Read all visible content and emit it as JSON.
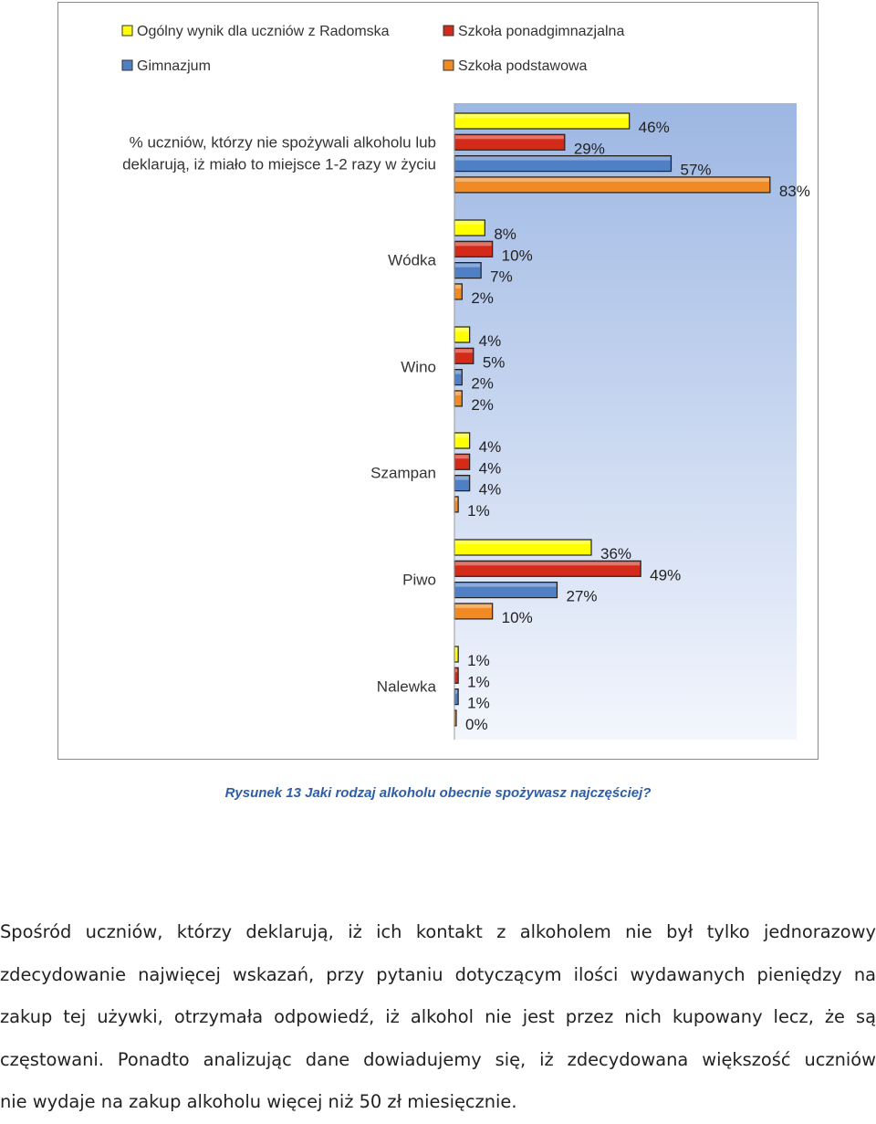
{
  "chart_data": {
    "type": "bar",
    "orientation": "horizontal",
    "categories": [
      "% uczniów, którzy nie spożywali alkoholu lub deklarują, iż miało to miejsce 1-2 razy w życiu",
      "Wódka",
      "Wino",
      "Szampan",
      "Piwo",
      "Nalewka"
    ],
    "category_lines": [
      [
        "% uczniów, którzy nie spożywali alkoholu lub",
        "deklarują, iż miało to miejsce 1-2 razy w życiu"
      ],
      [
        "Wódka"
      ],
      [
        "Wino"
      ],
      [
        "Szampan"
      ],
      [
        "Piwo"
      ],
      [
        "Nalewka"
      ]
    ],
    "series": [
      {
        "name": "Ogólny wynik dla uczniów z Radomska",
        "color": "#ffff00",
        "values": [
          46,
          8,
          4,
          4,
          36,
          1
        ],
        "labels": [
          "46%",
          "8%",
          "4%",
          "4%",
          "36%",
          "1%"
        ]
      },
      {
        "name": "Szkoła ponadgimnazjalna",
        "color": "#d42a1a",
        "values": [
          29,
          10,
          5,
          4,
          49,
          1
        ],
        "labels": [
          "29%",
          "10%",
          "5%",
          "4%",
          "49%",
          "1%"
        ]
      },
      {
        "name": "Gimnazjum",
        "color": "#4f7fc4",
        "values": [
          57,
          7,
          2,
          4,
          27,
          1
        ],
        "labels": [
          "57%",
          "7%",
          "2%",
          "4%",
          "27%",
          "1%"
        ]
      },
      {
        "name": "Szkoła podstawowa",
        "color": "#f08a24",
        "values": [
          83,
          2,
          2,
          1,
          10,
          0
        ],
        "labels": [
          "83%",
          "2%",
          "2%",
          "1%",
          "10%",
          "0%"
        ]
      }
    ],
    "xlim": [
      0,
      90
    ],
    "legend_position": "top",
    "plot_background": "gradient blue to white",
    "grid": false
  },
  "caption": "Rysunek 13 Jaki rodzaj alkoholu obecnie spożywasz najczęściej?",
  "paragraph": {
    "lines": [
      "Spośród uczniów, którzy deklarują, iż ich kontakt z alkoholem nie był tylko jednorazowy",
      "zdecydowanie najwięcej wskazań, przy pytaniu dotyczącym ilości wydawanych pieniędzy na",
      "zakup tej używki, otrzymała odpowiedź, iż alkohol nie jest przez nich kupowany lecz, że są",
      "częstowani. Ponadto analizując dane dowiadujemy się, iż zdecydowana większość uczniów",
      "nie wydaje na zakup alkoholu więcej niż 50 zł miesięcznie."
    ]
  }
}
